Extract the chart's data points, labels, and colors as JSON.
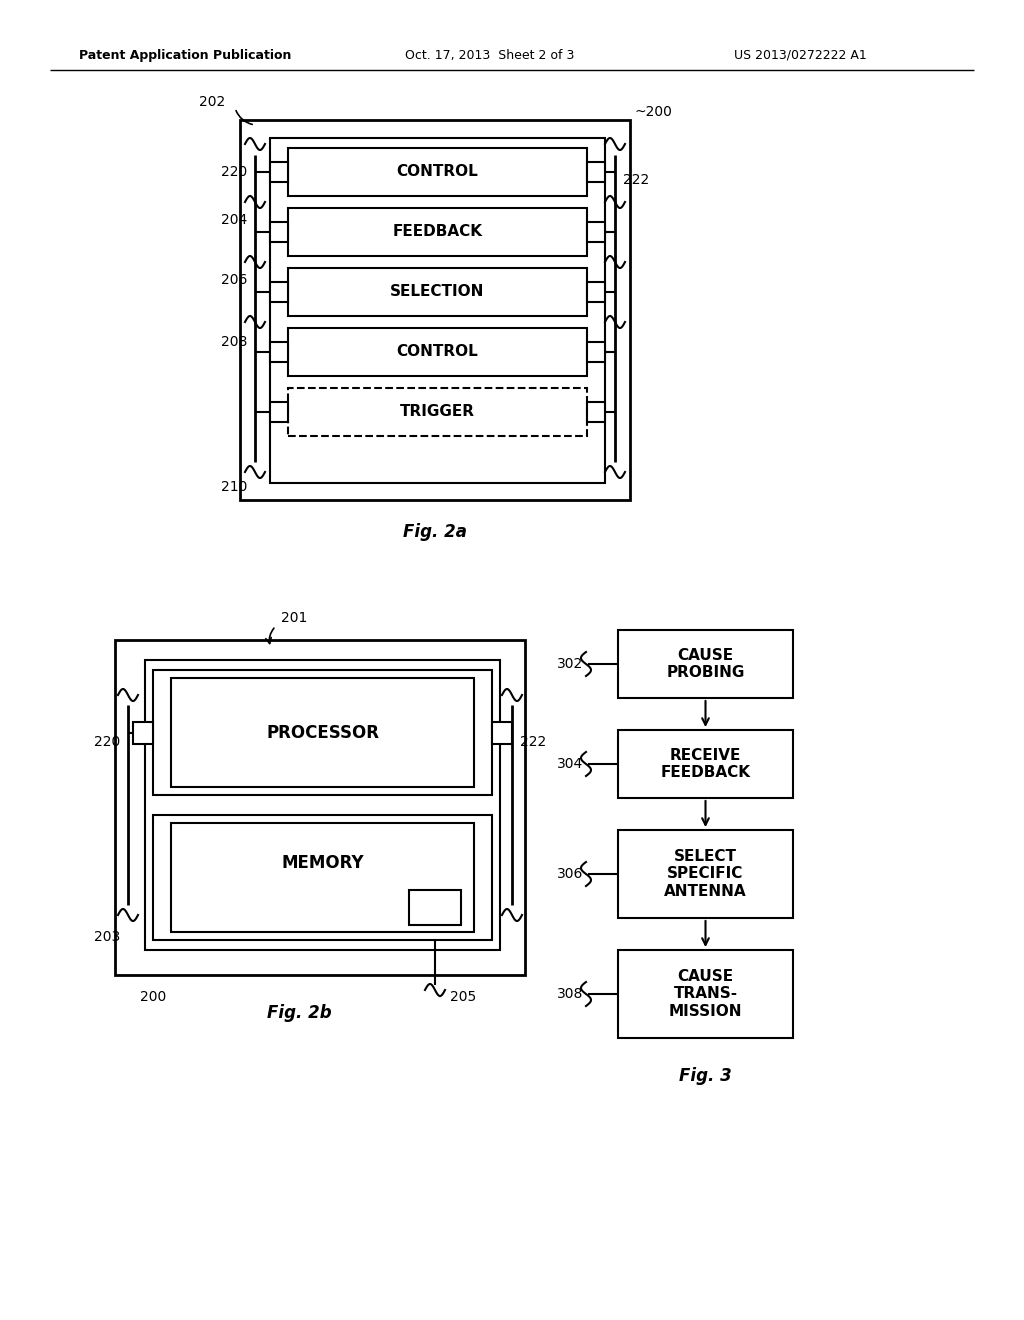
{
  "bg_color": "#ffffff",
  "header_left": "Patent Application Publication",
  "header_center": "Oct. 17, 2013  Sheet 2 of 3",
  "header_right": "US 2013/0272222 A1",
  "fig2a_caption": "Fig. 2a",
  "fig2b_caption": "Fig. 2b",
  "fig3_caption": "Fig. 3",
  "fig2a_boxes": [
    "CONTROL",
    "FEEDBACK",
    "SELECTION",
    "CONTROL",
    "TRIGGER"
  ],
  "fig3_boxes": [
    "CAUSE\nPROBING",
    "RECEIVE\nFEEDBACK",
    "SELECT\nSPECIFIC\nANTENNA",
    "CAUSE\nTRANS-\nMISSION"
  ],
  "fig3_labels": [
    "302",
    "304",
    "306",
    "308"
  ]
}
